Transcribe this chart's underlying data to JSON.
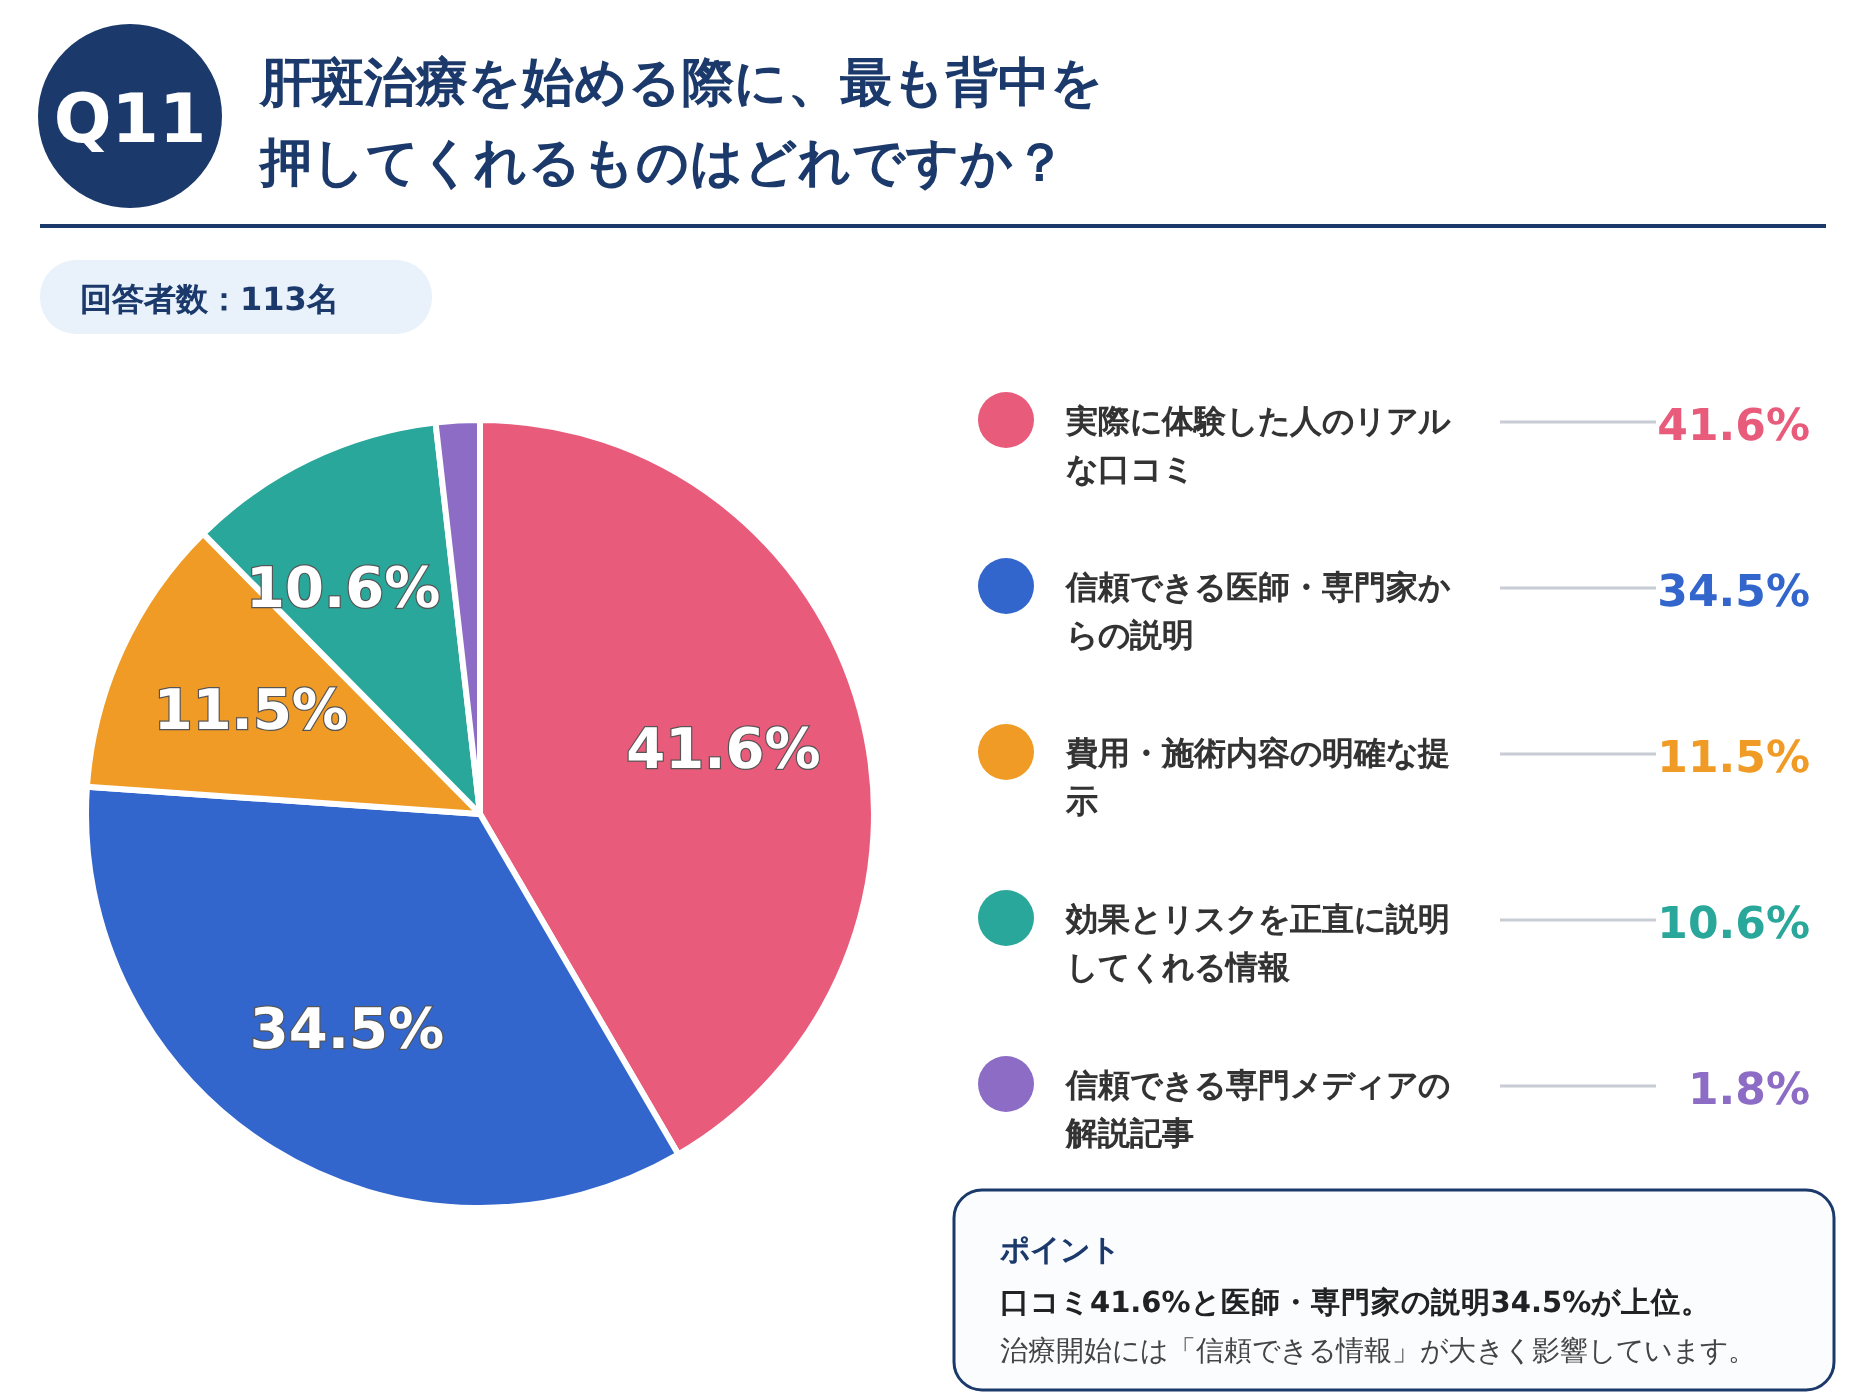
{
  "chart_data": {
    "type": "pie",
    "title": "肝斑治療を始める際に、最も背中を押してくれるものはどれですか？",
    "subtitle": "回答者数：113名",
    "categories": [
      "実際に体験した人のリアルな口コミ",
      "信頼できる医師・専門家からの説明",
      "費用・施術内容の明確な提示",
      "効果とリスクを正直に説明してくれる情報",
      "信頼できる専門メディアの解説記事"
    ],
    "values": [
      41.6,
      34.5,
      11.5,
      10.6,
      1.8
    ],
    "colors": [
      "#e85b7a",
      "#3366cc",
      "#f09b25",
      "#2aa79b",
      "#8c6cc4"
    ],
    "value_labels": [
      "41.6%",
      "34.5%",
      "11.5%",
      "10.6%",
      "1.8%"
    ],
    "legend": "right",
    "annotations": [
      "Q11",
      "ポイント",
      "口コミ41.6%と医師・専門家の説明34.5%が上位。",
      "治療開始には「信頼できる情報」が大きく影響しています。"
    ]
  }
}
